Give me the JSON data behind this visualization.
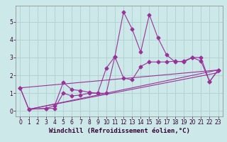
{
  "background_color": "#cce8e8",
  "grid_color": "#aacccc",
  "line_color": "#993399",
  "xlabel": "Windchill (Refroidissement éolien,°C)",
  "xlim": [
    -0.5,
    23.5
  ],
  "ylim": [
    -0.3,
    5.9
  ],
  "yticks": [
    0,
    1,
    2,
    3,
    4,
    5
  ],
  "xticks": [
    0,
    1,
    2,
    3,
    4,
    5,
    6,
    7,
    8,
    9,
    10,
    11,
    12,
    13,
    14,
    15,
    16,
    17,
    18,
    19,
    20,
    21,
    22,
    23
  ],
  "series1_x": [
    0,
    1,
    3,
    4,
    5,
    6,
    7,
    8,
    9,
    10,
    11,
    12,
    13,
    14,
    15,
    16,
    17,
    18,
    19,
    20,
    21,
    22,
    23
  ],
  "series1_y": [
    1.3,
    0.1,
    0.15,
    0.15,
    1.0,
    0.85,
    0.9,
    1.0,
    1.0,
    1.0,
    3.05,
    5.55,
    4.6,
    3.3,
    5.4,
    4.1,
    3.15,
    2.75,
    2.8,
    3.0,
    3.0,
    1.65,
    2.3
  ],
  "series2_x": [
    0,
    1,
    3,
    4,
    5,
    6,
    7,
    8,
    9,
    10,
    11,
    12,
    13,
    14,
    15,
    16,
    17,
    18,
    19,
    20,
    21,
    22,
    23
  ],
  "series2_y": [
    1.3,
    0.1,
    0.15,
    0.3,
    1.6,
    1.2,
    1.15,
    1.05,
    1.0,
    2.4,
    3.05,
    1.85,
    1.75,
    2.5,
    2.75,
    2.75,
    2.75,
    2.8,
    2.75,
    3.0,
    2.8,
    1.65,
    2.3
  ],
  "series3_x": [
    0,
    23
  ],
  "series3_y": [
    1.3,
    2.3
  ],
  "series4_x": [
    1,
    23
  ],
  "series4_y": [
    0.1,
    2.3
  ],
  "series5_x": [
    1,
    23
  ],
  "series5_y": [
    0.1,
    2.15
  ],
  "marker": "D",
  "marker_size": 2.5,
  "linewidth": 0.8,
  "xlabel_fontsize": 6.5,
  "tick_fontsize": 5.5
}
